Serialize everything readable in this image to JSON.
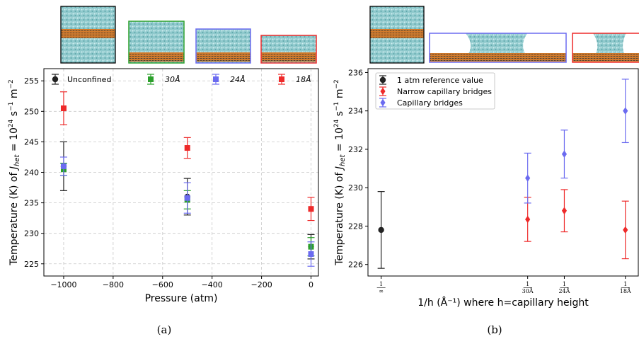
{
  "chart_data": [
    {
      "type": "scatter",
      "panel_caption": "(a)",
      "xlabel": "Pressure (atm)",
      "ylabel": "Temperature (K) of J_het = 10^24 s^-1 m^-2",
      "ylabel_parts": [
        "Temperature (K) of ",
        "J",
        "het",
        " = 10",
        "24",
        " s",
        "−1",
        "m",
        "−2"
      ],
      "xlim": [
        -1080,
        30
      ],
      "ylim": [
        223,
        257
      ],
      "x_ticks": [
        -1000,
        -800,
        -600,
        -400,
        -200,
        0
      ],
      "x_tick_labels": [
        "−1000",
        "−800",
        "−600",
        "−400",
        "−200",
        "0"
      ],
      "y_ticks": [
        225,
        230,
        235,
        240,
        245,
        250,
        255
      ],
      "grid": true,
      "legend_position": "top",
      "series": [
        {
          "name": "Unconfined",
          "color": "#222222",
          "marker": "circle",
          "x": [
            -1000,
            -500,
            0
          ],
          "y": [
            241.0,
            236.0,
            227.8
          ],
          "err": [
            4.0,
            3.0,
            2.0
          ]
        },
        {
          "name": "30Å",
          "color": "#2ca02c",
          "marker": "square",
          "x": [
            -1000,
            -500,
            0
          ],
          "y": [
            240.5,
            235.5,
            227.8
          ],
          "err": [
            1.0,
            1.5,
            1.5
          ]
        },
        {
          "name": "24Å",
          "color": "#6b6bf0",
          "marker": "square",
          "x": [
            -1000,
            -500,
            0
          ],
          "y": [
            241.0,
            235.8,
            226.6
          ],
          "err": [
            1.5,
            2.5,
            2.0
          ]
        },
        {
          "name": "18Å",
          "color": "#ee2a2a",
          "marker": "square",
          "x": [
            -1000,
            -500,
            0
          ],
          "y": [
            250.5,
            244.0,
            234.0
          ],
          "err": [
            2.7,
            1.7,
            1.9
          ]
        }
      ]
    },
    {
      "type": "scatter",
      "panel_caption": "(b)",
      "xlabel": "1/h (Å⁻¹) where h=capillary height",
      "ylabel": "Temperature (K) of J_het = 10^24 s^-1 m^-2",
      "ylabel_parts": [
        "Temperature (K) of ",
        "J",
        "het",
        " = 10",
        "24",
        " s",
        "−1",
        "m",
        "−2"
      ],
      "xlim": [
        -0.003,
        0.0585
      ],
      "ylim": [
        225.4,
        236.2
      ],
      "x_ticks": [
        0,
        0.03333,
        0.04167,
        0.05556
      ],
      "x_tick_labels": [
        [
          "1",
          "∞"
        ],
        [
          "1",
          "30Å"
        ],
        [
          "1",
          "24Å"
        ],
        [
          "1",
          "18Å"
        ]
      ],
      "y_ticks": [
        226,
        228,
        230,
        232,
        234,
        236
      ],
      "grid": false,
      "legend_position": "top-left",
      "series": [
        {
          "name": "1 atm reference value",
          "color": "#222222",
          "marker": "circle",
          "x": [
            0
          ],
          "y": [
            227.8
          ],
          "err": [
            2.0
          ]
        },
        {
          "name": "Narrow capillary bridges",
          "color": "#ee2a2a",
          "marker": "diamond",
          "x": [
            0.03333,
            0.04167,
            0.05556
          ],
          "y": [
            228.35,
            228.8,
            227.8
          ],
          "err": [
            1.15,
            1.1,
            1.5
          ]
        },
        {
          "name": "Capillary bridges",
          "color": "#6b6bf0",
          "marker": "diamond",
          "x": [
            0.03333,
            0.04167,
            0.05556
          ],
          "y": [
            230.5,
            231.75,
            234.0
          ],
          "err": [
            1.3,
            1.25,
            1.65
          ]
        }
      ]
    }
  ]
}
